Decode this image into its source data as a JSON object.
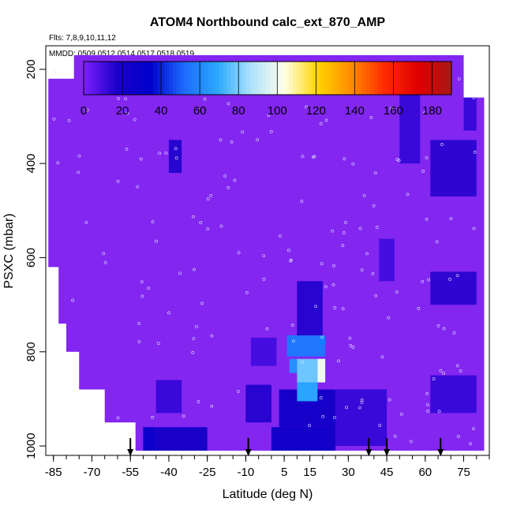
{
  "chart_data": {
    "type": "heatmap",
    "title": "ATOM4 Northbound calc_ext_870_AMP",
    "flights_label": "Flts: 7,8,9,10,11,12",
    "dates_label": "MMDD: 0509,0512,0514,0517,0518,0519",
    "xlabel": "Latitude (deg N)",
    "ylabel": "PSXC (mbar)",
    "xlim": [
      -88,
      85
    ],
    "ylim": [
      1020,
      150
    ],
    "x_ticks": [
      -85,
      -70,
      -55,
      -40,
      -25,
      -10,
      5,
      15,
      30,
      45,
      60,
      75
    ],
    "x_tick_labels": [
      "-85",
      "-70",
      "-55",
      "-40",
      "-25",
      "-10",
      "5",
      "15",
      "30",
      "45",
      "60",
      "75"
    ],
    "y_ticks": [
      200,
      400,
      600,
      800,
      1000
    ],
    "y_tick_labels": [
      "200",
      "400",
      "600",
      "800",
      "1000"
    ],
    "colorbar": {
      "range": [
        0,
        190
      ],
      "tick_values": [
        0,
        20,
        40,
        60,
        80,
        100,
        120,
        140,
        160,
        180
      ],
      "tick_labels": [
        "0",
        "20",
        "40",
        "60",
        "80",
        "100",
        "120",
        "140",
        "160",
        "180"
      ],
      "colors": [
        "#7f1fff",
        "#1a00c8",
        "#0000cc",
        "#1e6bff",
        "#2aa8ff",
        "#aee2ff",
        "#ffffe8",
        "#ffd400",
        "#ff8c00",
        "#ff2a00",
        "#e00000",
        "#a81818"
      ]
    },
    "background_color": "#8226f0",
    "arrows_latitude": [
      -55,
      -9,
      38,
      45,
      66
    ],
    "cells": [
      {
        "x0": -45,
        "x1": -35,
        "p0": 860,
        "p1": 930,
        "value": 12
      },
      {
        "x0": -45,
        "x1": -25,
        "p0": 960,
        "p1": 1010,
        "value": 18
      },
      {
        "x0": -50,
        "x1": -45,
        "p0": 960,
        "p1": 1010,
        "value": 25
      },
      {
        "x0": -40,
        "x1": -35,
        "p0": 350,
        "p1": 420,
        "value": 15
      },
      {
        "x0": -10,
        "x1": 0,
        "p0": 870,
        "p1": 950,
        "value": 15
      },
      {
        "x0": -8,
        "x1": 2,
        "p0": 770,
        "p1": 830,
        "value": 10
      },
      {
        "x0": 0,
        "x1": 25,
        "p0": 960,
        "p1": 1010,
        "value": 22
      },
      {
        "x0": 3,
        "x1": 25,
        "p0": 880,
        "p1": 960,
        "value": 20
      },
      {
        "x0": 10,
        "x1": 20,
        "p0": 650,
        "p1": 780,
        "value": 15
      },
      {
        "x0": 6,
        "x1": 21,
        "p0": 765,
        "p1": 810,
        "value": 55
      },
      {
        "x0": 7,
        "x1": 10,
        "p0": 815,
        "p1": 845,
        "value": 62
      },
      {
        "x0": 10,
        "x1": 18,
        "p0": 815,
        "p1": 865,
        "value": 78
      },
      {
        "x0": 18,
        "x1": 21,
        "p0": 815,
        "p1": 865,
        "value": 100
      },
      {
        "x0": 10,
        "x1": 18,
        "p0": 865,
        "p1": 905,
        "value": 68
      },
      {
        "x0": 25,
        "x1": 45,
        "p0": 880,
        "p1": 1000,
        "value": 12
      },
      {
        "x0": 42,
        "x1": 48,
        "p0": 560,
        "p1": 650,
        "value": 10
      },
      {
        "x0": 50,
        "x1": 58,
        "p0": 250,
        "p1": 400,
        "value": 12
      },
      {
        "x0": 62,
        "x1": 80,
        "p0": 350,
        "p1": 470,
        "value": 14
      },
      {
        "x0": 75,
        "x1": 80,
        "p0": 260,
        "p1": 330,
        "value": 12
      },
      {
        "x0": 62,
        "x1": 80,
        "p0": 630,
        "p1": 700,
        "value": 14
      },
      {
        "x0": 62,
        "x1": 80,
        "p0": 850,
        "p1": 930,
        "value": 12
      }
    ]
  }
}
